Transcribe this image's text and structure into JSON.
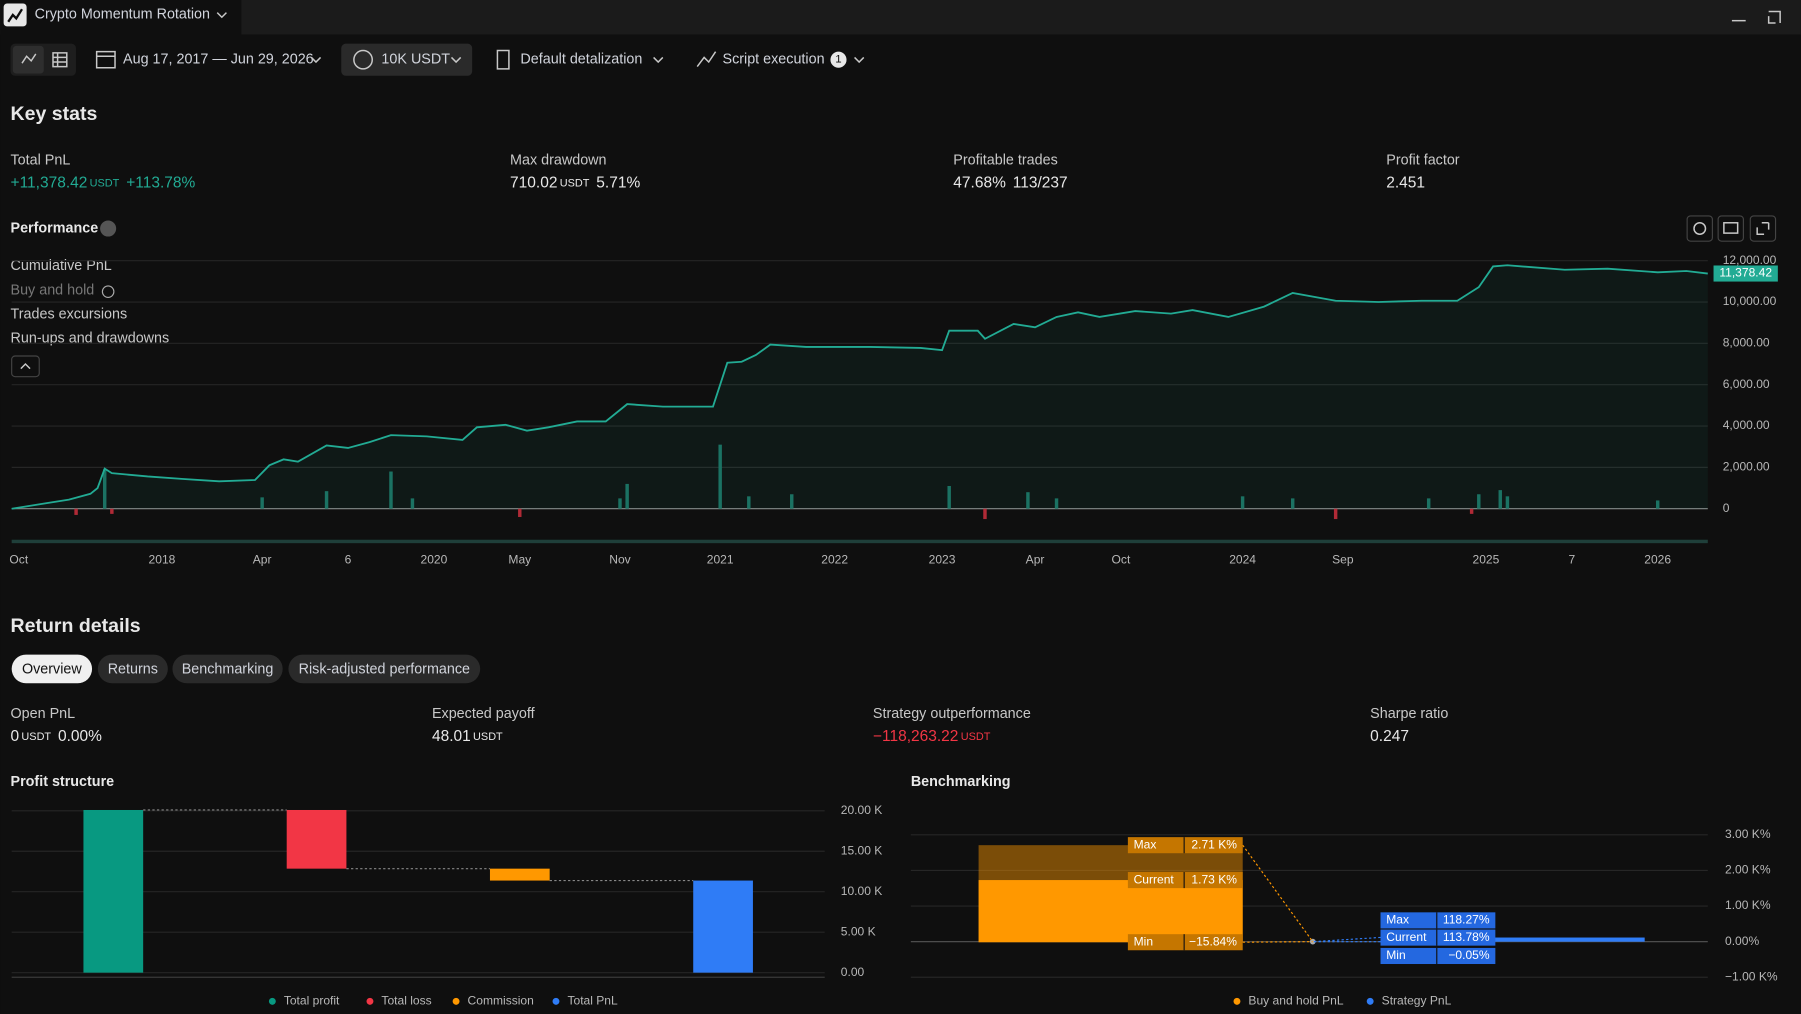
{
  "header": {
    "title": "Crypto Momentum Rotation"
  },
  "toolbar": {
    "date_range": "Aug 17, 2017 — Jun 29, 2026",
    "capital": "10K USDT",
    "detalization": "Default detalization",
    "script": "Script execution",
    "script_badge": "1"
  },
  "key_stats": {
    "title": "Key stats",
    "items": [
      {
        "label": "Total PnL",
        "value": "+11,378.42",
        "unit": "USDT",
        "percent": "+113.78%"
      },
      {
        "label": "Max drawdown",
        "value": "710.02",
        "unit": "USDT",
        "percent": "5.71%"
      },
      {
        "label": "Profitable trades",
        "value": "47.68%",
        "percent": "113/237"
      },
      {
        "label": "Profit factor",
        "value": "2.451"
      }
    ]
  },
  "performance": {
    "title": "Performance",
    "legend": [
      "Cumulative PnL",
      "Buy and hold",
      "Trades excursions",
      "Run-ups and drawdowns"
    ]
  },
  "return_details": {
    "title": "Return details",
    "tabs": [
      "Overview",
      "Returns",
      "Benchmarking",
      "Risk-adjusted performance"
    ],
    "items": [
      {
        "label": "Open PnL",
        "value": "0",
        "unit": "USDT",
        "percent": "0.00%"
      },
      {
        "label": "Expected payoff",
        "value": "48.01",
        "unit": "USDT"
      },
      {
        "label": "Strategy outperformance",
        "value": "−118,263.22",
        "unit": "USDT"
      },
      {
        "label": "Sharpe ratio",
        "value": "0.247"
      }
    ]
  },
  "chart_data": [
    {
      "type": "line",
      "color": "#22ab94",
      "x": [
        0,
        5,
        8,
        11,
        12,
        13,
        14,
        19,
        24,
        29,
        34,
        36,
        38,
        40,
        44,
        47,
        50,
        53,
        58,
        63,
        65,
        69,
        72,
        75,
        79,
        83,
        86,
        91,
        95,
        98,
        100,
        102,
        104,
        106,
        111,
        120,
        127,
        130,
        131,
        135,
        136,
        140,
        143,
        146,
        149,
        152,
        157,
        162,
        165,
        170,
        175,
        179,
        185,
        191,
        197,
        202,
        205,
        207,
        209,
        217,
        223,
        230,
        234,
        237
      ],
      "values": [
        0,
        280,
        440,
        720,
        1000,
        1940,
        1720,
        1560,
        1440,
        1330,
        1390,
        2100,
        2390,
        2280,
        3060,
        2940,
        3220,
        3560,
        3500,
        3330,
        3940,
        4060,
        3780,
        3940,
        4220,
        4220,
        5060,
        4940,
        4940,
        4940,
        7060,
        7110,
        7440,
        7940,
        7830,
        7830,
        7780,
        7670,
        8610,
        8610,
        8220,
        8940,
        8780,
        9280,
        9500,
        9280,
        9560,
        9440,
        9610,
        9280,
        9780,
        10440,
        10060,
        10000,
        10060,
        10060,
        10720,
        11720,
        11780,
        11560,
        11610,
        11440,
        11500,
        11378.42
      ],
      "last_value_label": "11,378.42",
      "excursions": {
        "x": [
          9,
          13,
          14,
          35,
          44,
          53,
          56,
          71,
          85,
          86,
          99,
          103,
          109,
          131,
          136,
          142,
          146,
          172,
          179,
          185,
          198,
          204,
          205,
          208,
          209,
          230
        ],
        "values": [
          -300,
          1900,
          -250,
          550,
          850,
          1800,
          500,
          -400,
          500,
          1200,
          3100,
          600,
          700,
          1100,
          -500,
          800,
          500,
          600,
          500,
          -500,
          500,
          -250,
          700,
          900,
          600,
          400
        ],
        "colors": [
          "#1b6e60",
          "#b02a36"
        ]
      },
      "xlim": [
        0,
        237
      ],
      "ylim": [
        -1000,
        12800
      ],
      "xticks": [
        {
          "value": 1,
          "label": "Oct"
        },
        {
          "value": 21,
          "label": "2018"
        },
        {
          "value": 35,
          "label": "Apr"
        },
        {
          "value": 47,
          "label": "6"
        },
        {
          "value": 59,
          "label": "2020"
        },
        {
          "value": 71,
          "label": "May"
        },
        {
          "value": 85,
          "label": "Nov"
        },
        {
          "value": 99,
          "label": "2021"
        },
        {
          "value": 115,
          "label": "2022"
        },
        {
          "value": 130,
          "label": "2023"
        },
        {
          "value": 143,
          "label": "Apr"
        },
        {
          "value": 155,
          "label": "Oct"
        },
        {
          "value": 172,
          "label": "2024"
        },
        {
          "value": 186,
          "label": "Sep"
        },
        {
          "value": 206,
          "label": "2025"
        },
        {
          "value": 218,
          "label": "7"
        },
        {
          "value": 230,
          "label": "2026"
        }
      ],
      "yticks": [
        0,
        {
          "value": 2000,
          "label": "2,000.00"
        },
        {
          "value": 4000,
          "label": "4,000.00"
        },
        {
          "value": 6000,
          "label": "6,000.00"
        },
        {
          "value": 8000,
          "label": "8,000.00"
        },
        {
          "value": 10000,
          "label": "10,000.00"
        },
        {
          "value": 12000,
          "label": "12,000.00"
        }
      ],
      "grid": true
    },
    {
      "type": "waterfall",
      "title": "Profit structure",
      "categories": [
        "Total profit",
        "Total loss",
        "Commission",
        "Total PnL"
      ],
      "values": [
        20100,
        -7250,
        -1472,
        11378.42
      ],
      "colors": [
        "#089981",
        "#f23645",
        "#ff9800",
        "#2f7cf6"
      ],
      "ylim": [
        -300,
        21000
      ],
      "yticks": [
        {
          "value": 0,
          "label": "0.00"
        },
        {
          "value": 5000,
          "label": "5.00 K"
        },
        {
          "value": 10000,
          "label": "10.00 K"
        },
        {
          "value": 15000,
          "label": "15.00 K"
        },
        {
          "value": 20000,
          "label": "20.00 K"
        }
      ],
      "grid": true
    },
    {
      "type": "range",
      "title": "Benchmarking",
      "categories": [
        "Max",
        "Current",
        "Min"
      ],
      "series": [
        {
          "name": "Buy and hold PnL",
          "color": "#ff9800",
          "values": [
            2710,
            1730,
            -15.84
          ],
          "value_labels": [
            "2.71 K%",
            "1.73 K%",
            "−15.84%"
          ]
        },
        {
          "name": "Strategy PnL",
          "color": "#2f7cf6",
          "values": [
            118.27,
            113.78,
            -0.05
          ],
          "value_labels": [
            "118.27%",
            "113.78%",
            "−0.05%"
          ]
        }
      ],
      "ylim": [
        -1300,
        3600
      ],
      "yticks": [
        {
          "value": -1000,
          "label": "−1.00 K%"
        },
        {
          "value": 0,
          "label": "0.00%"
        },
        {
          "value": 1000,
          "label": "1.00 K%"
        },
        {
          "value": 2000,
          "label": "2.00 K%"
        },
        {
          "value": 3000,
          "label": "3.00 K%"
        }
      ],
      "grid": true
    }
  ]
}
